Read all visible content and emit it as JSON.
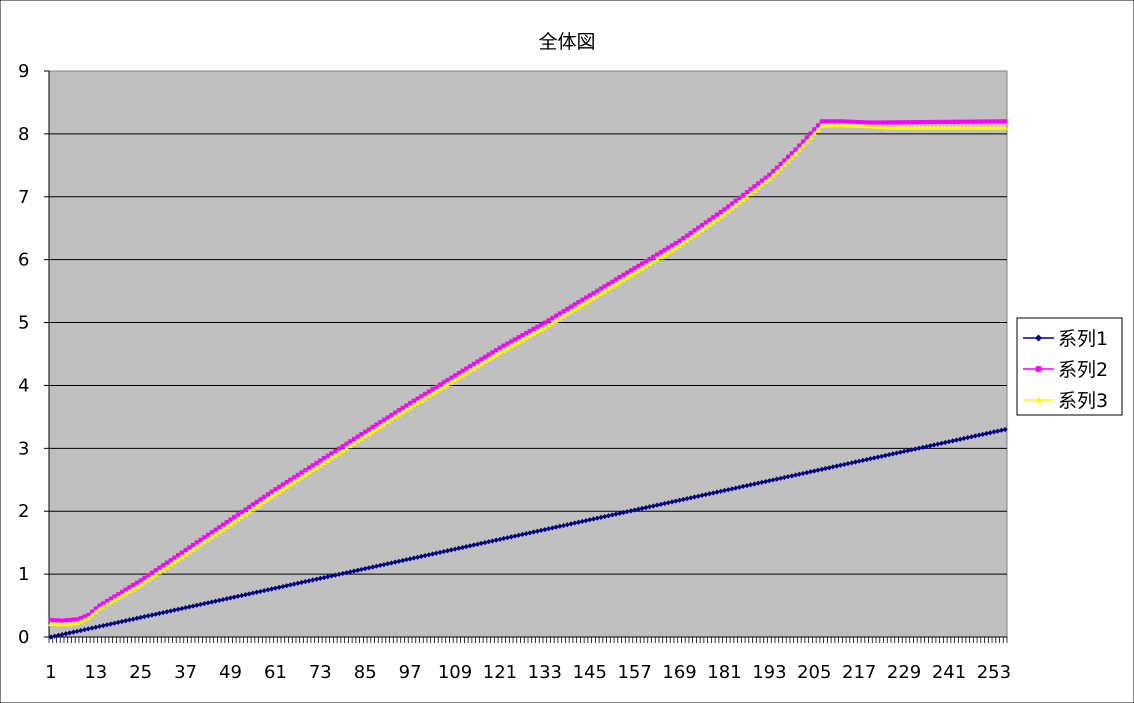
{
  "chart_data": {
    "type": "line",
    "title": "全体図",
    "xlabel": "",
    "ylabel": "",
    "ylim": [
      0,
      9
    ],
    "yticks": [
      0,
      1,
      2,
      3,
      4,
      5,
      6,
      7,
      8,
      9
    ],
    "x_count": 256,
    "x_tick_labels": [
      "1",
      "13",
      "25",
      "37",
      "49",
      "61",
      "73",
      "85",
      "97",
      "109",
      "121",
      "133",
      "145",
      "157",
      "169",
      "181",
      "193",
      "205",
      "217",
      "229",
      "241",
      "253"
    ],
    "grid": "horizontal",
    "plot_background": "#c0c0c0",
    "legend_position": "right",
    "series": [
      {
        "name": "系列1",
        "color": "#000080",
        "marker": "diamond",
        "keypoints": [
          [
            1,
            0.0
          ],
          [
            256,
            3.3
          ]
        ]
      },
      {
        "name": "系列2",
        "color": "#ff00ff",
        "marker": "square",
        "keypoints": [
          [
            1,
            0.27
          ],
          [
            4,
            0.26
          ],
          [
            8,
            0.28
          ],
          [
            11,
            0.35
          ],
          [
            14,
            0.5
          ],
          [
            25,
            0.9
          ],
          [
            61,
            2.35
          ],
          [
            97,
            3.72
          ],
          [
            121,
            4.6
          ],
          [
            127,
            4.8
          ],
          [
            133,
            5.0
          ],
          [
            169,
            6.3
          ],
          [
            181,
            6.8
          ],
          [
            193,
            7.35
          ],
          [
            200,
            7.75
          ],
          [
            207,
            8.2
          ],
          [
            212,
            8.2
          ],
          [
            220,
            8.18
          ],
          [
            256,
            8.2
          ]
        ]
      },
      {
        "name": "系列3",
        "color": "#ffff00",
        "marker": "triangle",
        "keypoints": [
          [
            1,
            0.21
          ],
          [
            4,
            0.2
          ],
          [
            8,
            0.22
          ],
          [
            11,
            0.3
          ],
          [
            14,
            0.45
          ],
          [
            25,
            0.83
          ],
          [
            61,
            2.27
          ],
          [
            97,
            3.65
          ],
          [
            121,
            4.52
          ],
          [
            127,
            4.72
          ],
          [
            133,
            4.92
          ],
          [
            169,
            6.22
          ],
          [
            181,
            6.72
          ],
          [
            193,
            7.28
          ],
          [
            200,
            7.68
          ],
          [
            207,
            8.13
          ],
          [
            212,
            8.14
          ],
          [
            220,
            8.12
          ],
          [
            225,
            8.1
          ],
          [
            256,
            8.1
          ]
        ]
      }
    ]
  }
}
